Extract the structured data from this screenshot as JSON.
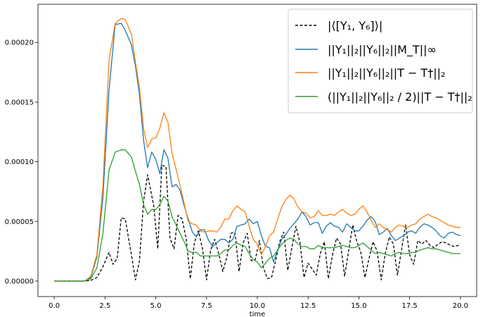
{
  "chart_data": {
    "type": "line",
    "title": "",
    "xlabel": "time",
    "ylabel": "",
    "xlim": [
      -0.8,
      20.8
    ],
    "ylim": [
      -1.3e-05,
      0.000232
    ],
    "xticks": [
      "0.0",
      "2.5",
      "5.0",
      "7.5",
      "10.0",
      "12.5",
      "15.0",
      "17.5",
      "20.0"
    ],
    "yticks": [
      "0.00000",
      "0.00005",
      "0.00010",
      "0.00015",
      "0.00020"
    ],
    "grid": false,
    "legend_position": "top-right",
    "series": [
      {
        "name": "|⟨[Y₁, Y₆]⟩|",
        "color": "#000000",
        "dash": true,
        "x": [
          0.0,
          0.5,
          1.0,
          1.5,
          1.8,
          2.1,
          2.4,
          2.7,
          2.9,
          3.1,
          3.3,
          3.5,
          3.8,
          4.0,
          4.2,
          4.4,
          4.6,
          4.9,
          5.1,
          5.3,
          5.5,
          5.7,
          5.9,
          6.1,
          6.3,
          6.5,
          6.7,
          6.9,
          7.1,
          7.3,
          7.5,
          7.7,
          7.9,
          8.1,
          8.3,
          8.5,
          8.7,
          8.9,
          9.1,
          9.3,
          9.5,
          9.7,
          9.9,
          10.1,
          10.3,
          10.5,
          10.7,
          10.9,
          11.1,
          11.3,
          11.5,
          11.7,
          11.9,
          12.1,
          12.3,
          12.5,
          12.7,
          12.9,
          13.1,
          13.3,
          13.5,
          13.7,
          13.9,
          14.1,
          14.3,
          14.5,
          14.7,
          14.9,
          15.1,
          15.3,
          15.5,
          15.7,
          15.9,
          16.1,
          16.3,
          16.5,
          16.7,
          16.9,
          17.1,
          17.3,
          17.5,
          17.7,
          17.9,
          18.1,
          18.3,
          18.5,
          18.7,
          18.9,
          19.1,
          19.3,
          19.5,
          19.7,
          19.9,
          20.0
        ],
        "values": [
          0.0,
          0.0,
          0.0,
          0.0,
          5e-07,
          3e-06,
          1.2e-05,
          2.4e-05,
          1.4e-05,
          1.9e-05,
          5.3e-05,
          5.2e-05,
          2.2e-05,
          1e-06,
          1.7e-05,
          6.7e-05,
          8.9e-05,
          6.3e-05,
          2.7e-05,
          9.7e-05,
          9.6e-05,
          3.6e-05,
          2.7e-05,
          5.5e-05,
          5.2e-05,
          3.5e-05,
          2e-06,
          3.2e-05,
          4.2e-05,
          2.7e-05,
          1e-06,
          2.6e-05,
          3.5e-05,
          2.3e-05,
          8e-06,
          2e-05,
          4e-05,
          4.1e-05,
          8e-06,
          3.2e-05,
          4e-05,
          1.7e-05,
          1.8e-05,
          3.4e-05,
          1.1e-05,
          2e-06,
          3e-06,
          1.7e-05,
          3.3e-05,
          4.1e-05,
          9e-06,
          2.8e-05,
          4.6e-05,
          3.2e-05,
          3e-06,
          1.5e-05,
          1e-05,
          5e-06,
          2.3e-05,
          3.3e-05,
          2e-06,
          2.2e-05,
          3.6e-05,
          3.1e-05,
          4e-06,
          2.6e-05,
          4.7e-05,
          3.3e-05,
          2.4e-05,
          3e-06,
          1.9e-05,
          3.3e-05,
          2.5e-05,
          1e-06,
          2.3e-05,
          3.7e-05,
          3.1e-05,
          5e-06,
          2.6e-05,
          4.7e-05,
          2.2e-05,
          1.4e-05,
          3.4e-05,
          3.1e-05,
          3.4e-05,
          3e-05,
          2.8e-05,
          3.1e-05,
          3.3e-05,
          3.2e-05,
          3e-05,
          2.9e-05,
          3e-05,
          3.1e-05
        ]
      },
      {
        "name": "||Y₁||₂||Y₆||₂||M_T||∞",
        "color": "#1f77b4",
        "dash": false,
        "x": [
          0.0,
          0.5,
          1.0,
          1.5,
          1.8,
          2.1,
          2.4,
          2.7,
          3.0,
          3.3,
          3.5,
          3.8,
          4.0,
          4.2,
          4.4,
          4.6,
          4.8,
          5.0,
          5.2,
          5.4,
          5.6,
          5.8,
          6.0,
          6.2,
          6.4,
          6.6,
          6.8,
          7.0,
          7.2,
          7.4,
          7.6,
          7.8,
          8.0,
          8.2,
          8.4,
          8.6,
          8.8,
          9.0,
          9.2,
          9.4,
          9.6,
          9.8,
          10.0,
          10.2,
          10.4,
          10.6,
          10.8,
          11.0,
          11.2,
          11.4,
          11.6,
          11.8,
          12.0,
          12.2,
          12.4,
          12.6,
          12.8,
          13.0,
          13.2,
          13.4,
          13.6,
          13.8,
          14.0,
          14.2,
          14.4,
          14.6,
          14.8,
          15.0,
          15.2,
          15.4,
          15.6,
          15.8,
          16.0,
          16.2,
          16.4,
          16.6,
          16.8,
          17.0,
          17.2,
          17.4,
          17.6,
          17.8,
          18.0,
          18.2,
          18.4,
          18.6,
          18.8,
          19.0,
          19.2,
          19.4,
          19.6,
          19.8,
          20.0
        ],
        "values": [
          0.0,
          0.0,
          0.0,
          0.0,
          3e-06,
          2e-05,
          7e-05,
          0.00016,
          0.000215,
          0.000216,
          0.00021,
          0.000198,
          0.00018,
          0.000156,
          0.000118,
          9.5e-05,
          0.000108,
          0.000102,
          9e-05,
          0.00011,
          0.000103,
          7.9e-05,
          8.1e-05,
          7.6e-05,
          6.3e-05,
          5.2e-05,
          4.1e-05,
          3.7e-05,
          4.3e-05,
          4.3e-05,
          3.4e-05,
          2.9e-05,
          3.2e-05,
          3.5e-05,
          3.5e-05,
          3.2e-05,
          3.5e-05,
          4.6e-05,
          4.7e-05,
          4.8e-05,
          5.2e-05,
          4.8e-05,
          5e-05,
          3.8e-05,
          2.9e-05,
          2.8e-05,
          1.6e-05,
          2.6e-05,
          3.5e-05,
          3.9e-05,
          4.4e-05,
          4.8e-05,
          5.2e-05,
          5.8e-05,
          5.4e-05,
          4.7e-05,
          4.9e-05,
          4.9e-05,
          4e-05,
          4.6e-05,
          4.9e-05,
          4.6e-05,
          4.5e-05,
          4.1e-05,
          4.8e-05,
          4.5e-05,
          4.2e-05,
          4.2e-05,
          4.6e-05,
          5.1e-05,
          5.4e-05,
          5e-05,
          3.9e-05,
          4.1e-05,
          4.4e-05,
          3.8e-05,
          3.4e-05,
          3.6e-05,
          3.8e-05,
          4.1e-05,
          4.2e-05,
          4e-05,
          4.5e-05,
          4.8e-05,
          4.7e-05,
          4.5e-05,
          4.2e-05,
          3.8e-05,
          3.6e-05,
          4e-05,
          4.1e-05,
          3.9e-05,
          3.8e-05
        ]
      },
      {
        "name": "||Y₁||₂||Y₆||₂||T − T†||₂",
        "color": "#ff7f0e",
        "dash": false,
        "x": [
          0.0,
          0.5,
          1.0,
          1.5,
          1.8,
          2.1,
          2.4,
          2.7,
          3.0,
          3.3,
          3.5,
          3.8,
          4.0,
          4.2,
          4.4,
          4.6,
          4.8,
          5.0,
          5.2,
          5.4,
          5.6,
          5.8,
          6.0,
          6.2,
          6.4,
          6.6,
          6.8,
          7.0,
          7.2,
          7.4,
          7.6,
          7.8,
          8.0,
          8.2,
          8.4,
          8.6,
          8.8,
          9.0,
          9.2,
          9.4,
          9.6,
          9.8,
          10.0,
          10.2,
          10.4,
          10.6,
          10.8,
          11.0,
          11.2,
          11.4,
          11.6,
          11.8,
          12.0,
          12.2,
          12.4,
          12.6,
          12.8,
          13.0,
          13.2,
          13.4,
          13.6,
          13.8,
          14.0,
          14.2,
          14.4,
          14.6,
          14.8,
          15.0,
          15.2,
          15.4,
          15.6,
          15.8,
          16.0,
          16.2,
          16.4,
          16.6,
          16.8,
          17.0,
          17.2,
          17.4,
          17.6,
          17.8,
          18.0,
          18.2,
          18.4,
          18.6,
          18.8,
          19.0,
          19.2,
          19.4,
          19.6,
          19.8,
          20.0
        ],
        "values": [
          0.0,
          0.0,
          0.0,
          0.0,
          4e-06,
          2.2e-05,
          8e-05,
          0.000185,
          0.000216,
          0.00022,
          0.000219,
          0.000207,
          0.000183,
          0.000162,
          0.000128,
          0.000112,
          0.000119,
          0.00012,
          0.000128,
          0.000141,
          0.000133,
          0.000107,
          9.4e-05,
          8e-05,
          6.5e-05,
          5e-05,
          4.8e-05,
          4.7e-05,
          4.2e-05,
          4.1e-05,
          4.2e-05,
          4.2e-05,
          4.1e-05,
          4.5e-05,
          5.2e-05,
          5.2e-05,
          5.9e-05,
          6.3e-05,
          6e-05,
          5.8e-05,
          4.6e-05,
          3.5e-05,
          3.1e-05,
          2.2e-05,
          2.9e-05,
          3.8e-05,
          4.1e-05,
          5.2e-05,
          6.2e-05,
          6.8e-05,
          7.2e-05,
          6.9e-05,
          6.2e-05,
          5.8e-05,
          5.7e-05,
          5.3e-05,
          5.4e-05,
          5.9e-05,
          5.5e-05,
          5.5e-05,
          5.6e-05,
          5.5e-05,
          5.8e-05,
          6e-05,
          5.7e-05,
          5.5e-05,
          5.6e-05,
          6e-05,
          6.3e-05,
          5.8e-05,
          5.1e-05,
          4.5e-05,
          4.8e-05,
          4.5e-05,
          4.3e-05,
          4.1e-05,
          4.5e-05,
          4.7e-05,
          4.6e-05,
          4.5e-05,
          4.7e-05,
          4.8e-05,
          5.2e-05,
          5.4e-05,
          5.6e-05,
          5.4e-05,
          5.3e-05,
          5.1e-05,
          4.9e-05,
          4.7e-05,
          4.6e-05,
          4.5e-05,
          4.5e-05
        ]
      },
      {
        "name": "(||Y₁||₂||Y₆||₂ / 2)||T − T†||₂",
        "color": "#2ca02c",
        "dash": false,
        "x": [
          0.0,
          0.5,
          1.0,
          1.5,
          1.8,
          2.1,
          2.4,
          2.7,
          3.0,
          3.3,
          3.5,
          3.8,
          4.0,
          4.2,
          4.4,
          4.6,
          4.8,
          5.0,
          5.2,
          5.4,
          5.6,
          5.8,
          6.0,
          6.2,
          6.4,
          6.6,
          6.8,
          7.0,
          7.2,
          7.4,
          7.6,
          7.8,
          8.0,
          8.2,
          8.4,
          8.6,
          8.8,
          9.0,
          9.2,
          9.4,
          9.6,
          9.8,
          10.0,
          10.2,
          10.4,
          10.6,
          10.8,
          11.0,
          11.2,
          11.4,
          11.6,
          11.8,
          12.0,
          12.2,
          12.4,
          12.6,
          12.8,
          13.0,
          13.2,
          13.4,
          13.6,
          13.8,
          14.0,
          14.2,
          14.4,
          14.6,
          14.8,
          15.0,
          15.2,
          15.4,
          15.6,
          15.8,
          16.0,
          16.2,
          16.4,
          16.6,
          16.8,
          17.0,
          17.2,
          17.4,
          17.6,
          17.8,
          18.0,
          18.2,
          18.4,
          18.6,
          18.8,
          19.0,
          19.2,
          19.4,
          19.6,
          19.8,
          20.0
        ],
        "values": [
          0.0,
          0.0,
          0.0,
          0.0,
          2e-06,
          1.1e-05,
          4e-05,
          9.3e-05,
          0.000108,
          0.00011,
          0.00011,
          0.000104,
          9.2e-05,
          8.1e-05,
          6.4e-05,
          5.6e-05,
          6e-05,
          6e-05,
          6.4e-05,
          7.1e-05,
          6.7e-05,
          5.4e-05,
          4.7e-05,
          4e-05,
          3.3e-05,
          2.5e-05,
          2.4e-05,
          2.4e-05,
          2.1e-05,
          2.1e-05,
          2.1e-05,
          2.1e-05,
          2.1e-05,
          2.3e-05,
          2.6e-05,
          2.6e-05,
          3e-05,
          3.2e-05,
          3e-05,
          2.9e-05,
          2.3e-05,
          1.8e-05,
          1.6e-05,
          1.1e-05,
          1.5e-05,
          1.9e-05,
          2.1e-05,
          2.6e-05,
          3.1e-05,
          3.4e-05,
          3.6e-05,
          3.5e-05,
          3.1e-05,
          2.9e-05,
          2.9e-05,
          2.7e-05,
          2.7e-05,
          3e-05,
          2.8e-05,
          2.8e-05,
          2.8e-05,
          2.8e-05,
          2.9e-05,
          3e-05,
          2.9e-05,
          2.8e-05,
          2.8e-05,
          3e-05,
          3.2e-05,
          2.9e-05,
          2.6e-05,
          2.3e-05,
          2.4e-05,
          2.3e-05,
          2.2e-05,
          2.1e-05,
          2.3e-05,
          2.4e-05,
          2.3e-05,
          2.3e-05,
          2.4e-05,
          2.4e-05,
          2.6e-05,
          2.7e-05,
          2.8e-05,
          2.7e-05,
          2.7e-05,
          2.6e-05,
          2.5e-05,
          2.4e-05,
          2.3e-05,
          2.3e-05,
          2.3e-05
        ]
      }
    ]
  }
}
